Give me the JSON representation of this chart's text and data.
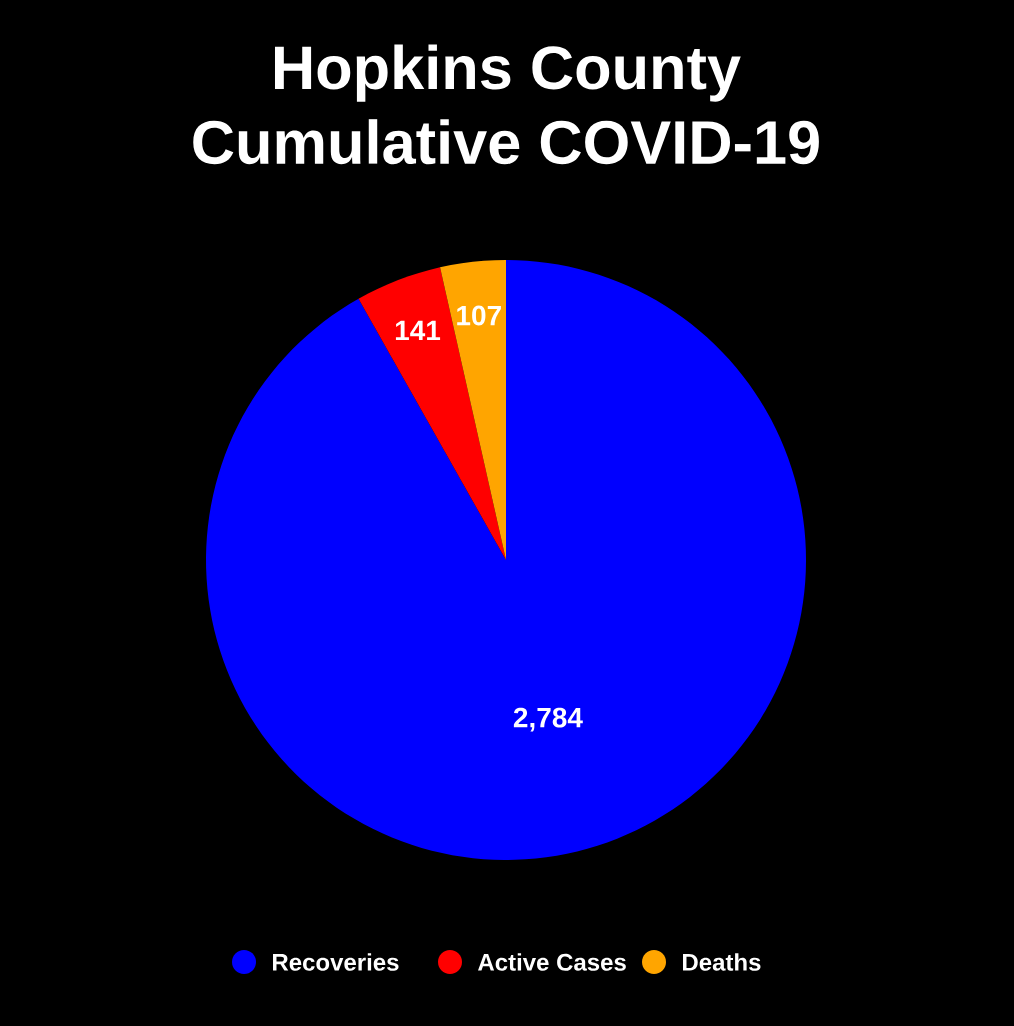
{
  "chart_data": {
    "type": "pie",
    "title": "Hopkins County\nCumulative COVID-19",
    "categories": [
      "Recoveries",
      "Active Cases",
      "Deaths"
    ],
    "values": [
      2784,
      141,
      107
    ],
    "colors": [
      "#0000ff",
      "#ff0000",
      "#ffa500"
    ],
    "data_labels": true,
    "value_labels": [
      "2,784",
      "141",
      "107"
    ],
    "legend": "bottom"
  }
}
